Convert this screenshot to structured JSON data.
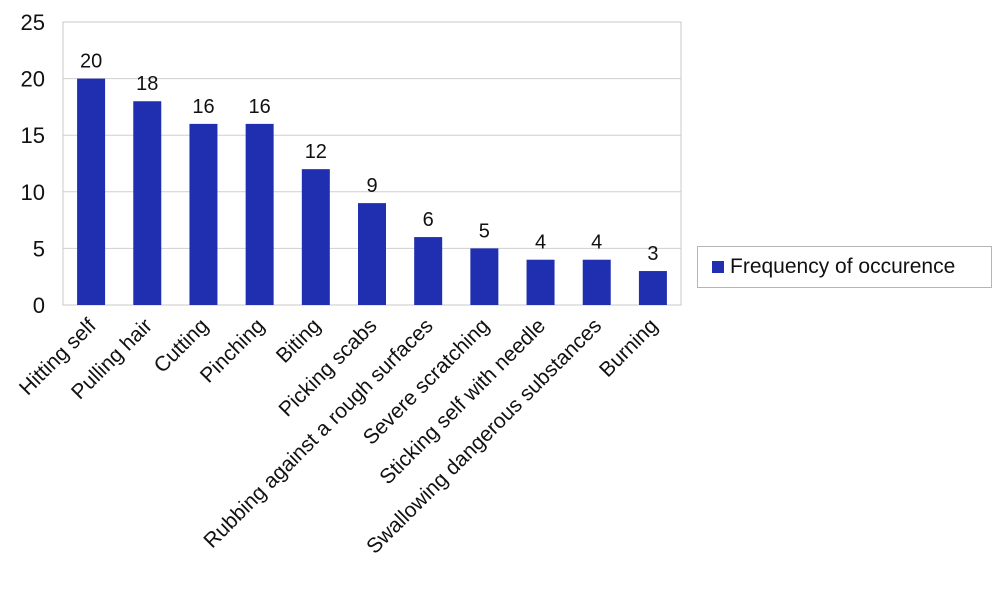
{
  "chart_data": {
    "type": "bar",
    "title": "",
    "xlabel": "",
    "ylabel": "",
    "ylim": [
      0,
      25
    ],
    "yticks": [
      "0",
      "5",
      "10",
      "15",
      "20",
      "25"
    ],
    "grid": true,
    "legend_position": "right",
    "categories": [
      "Hitting self",
      "Pulling hair",
      "Cutting",
      "Pinching",
      "Biting",
      "Picking scabs",
      "Rubbing against a rough surfaces",
      "Severe scratching",
      "Sticking self with needle",
      "Swallowing dangerous substances",
      "Burning"
    ],
    "series": [
      {
        "name": "Frequency of occurence",
        "color": "#1f2fb0",
        "values": [
          20,
          18,
          16,
          16,
          12,
          9,
          6,
          5,
          4,
          4,
          3
        ],
        "data_labels": [
          "20",
          "18",
          "16",
          "16",
          "12",
          "9",
          "6",
          "5",
          "4",
          "4",
          "3"
        ]
      }
    ]
  }
}
